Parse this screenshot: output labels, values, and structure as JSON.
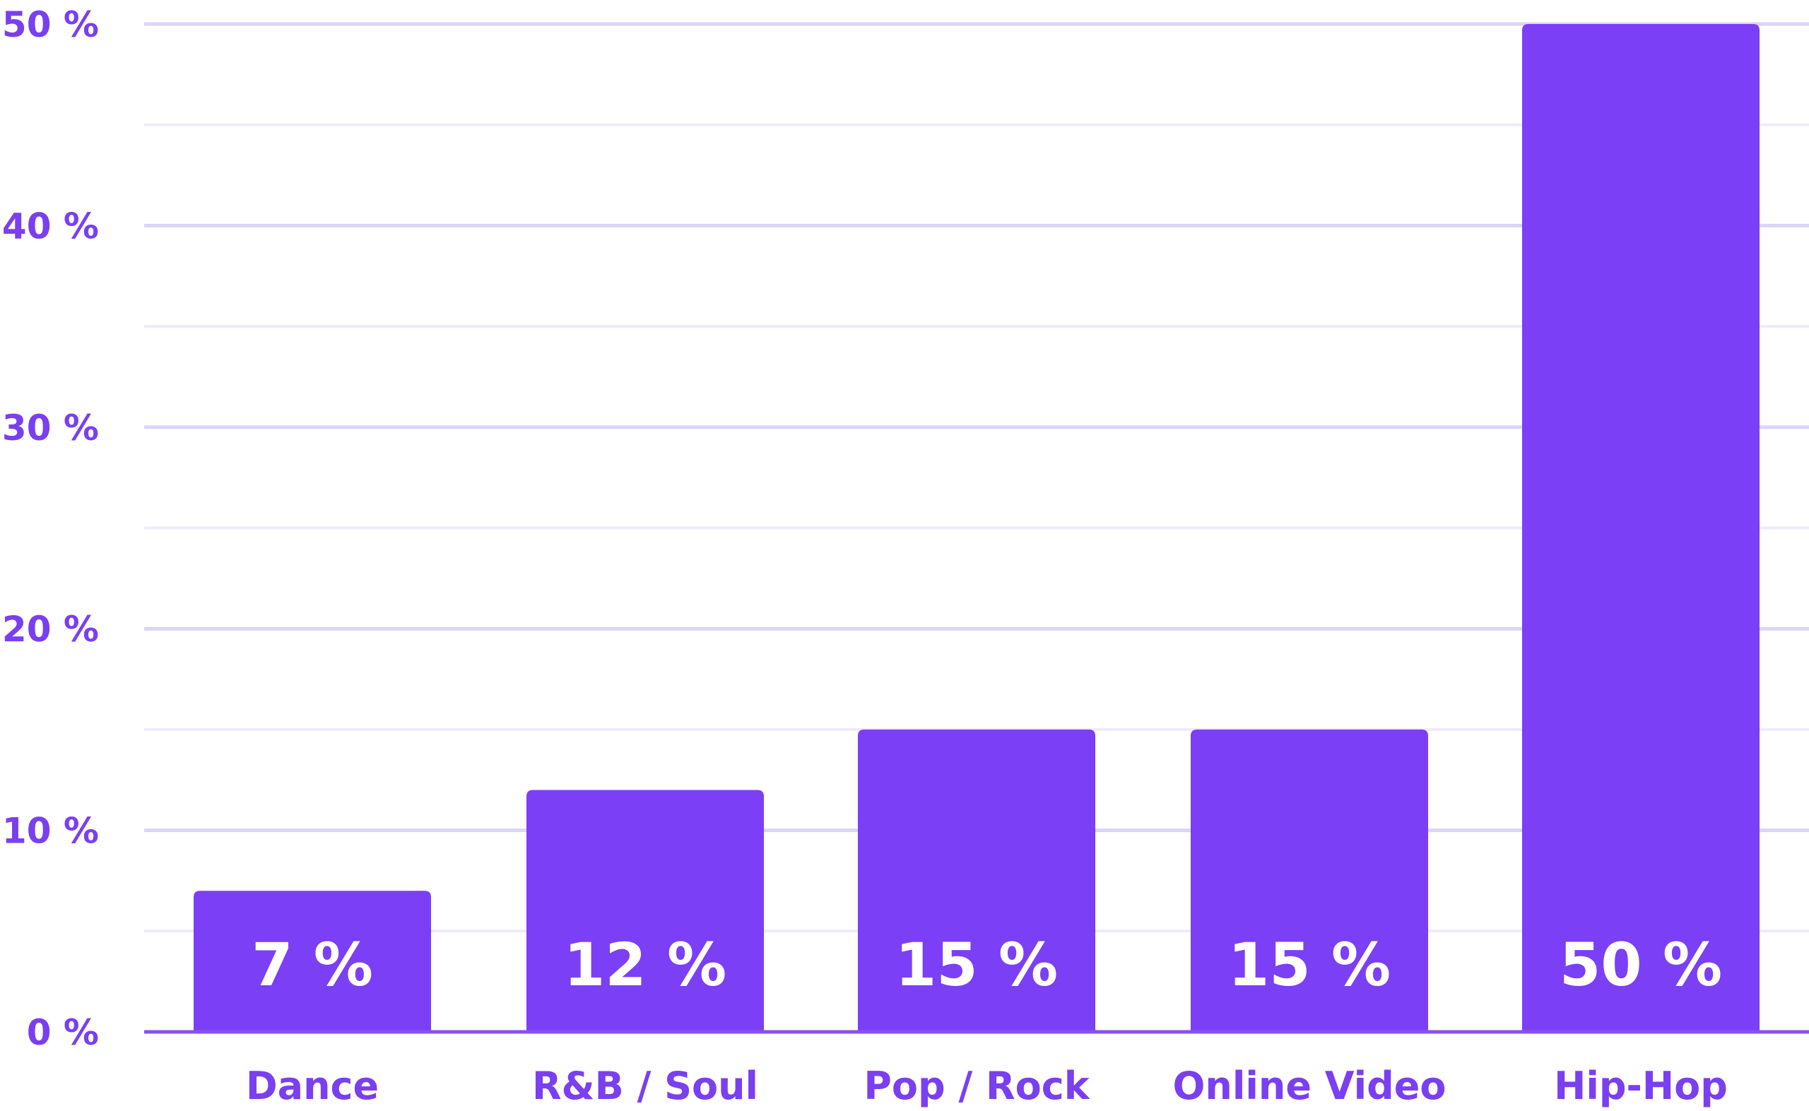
{
  "chart_data": {
    "type": "bar",
    "categories": [
      "Dance",
      "R&B / Soul",
      "Pop / Rock",
      "Online Video",
      "Hip-Hop"
    ],
    "values": [
      7,
      12,
      15,
      15,
      50
    ],
    "value_labels": [
      "7 %",
      "12 %",
      "15 %",
      "15 %",
      "50 %"
    ],
    "ylim": [
      0,
      50
    ],
    "y_ticks": [
      0,
      10,
      20,
      30,
      40,
      50
    ],
    "y_tick_labels": [
      "0 %",
      "10 %",
      "20 %",
      "30 %",
      "40 %",
      "50 %"
    ],
    "y_minor_ticks": [
      5,
      15,
      25,
      35,
      45
    ],
    "grid": true,
    "legend": "none",
    "colors": {
      "bar": "#7b3ff6",
      "text": "#7a3ff0",
      "bar_label": "#ffffff",
      "grid_major": "#dcd3f5",
      "grid_minor": "#efeafb",
      "axis": "#8a4ff0"
    }
  }
}
